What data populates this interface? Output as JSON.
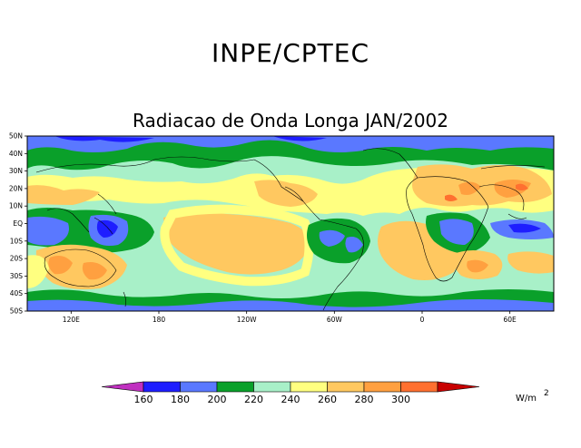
{
  "header": {
    "title": "INPE/CPTEC",
    "subtitle": "Radiacao de Onda Longa JAN/2002"
  },
  "map": {
    "lat_labels": [
      "50N",
      "40N",
      "30N",
      "20N",
      "10N",
      "EQ",
      "10S",
      "20S",
      "30S",
      "40S",
      "50S"
    ],
    "lon_labels": [
      "120E",
      "180",
      "120W",
      "60W",
      "0",
      "60E"
    ],
    "lon_label_positions_deg": [
      120,
      180,
      240,
      300,
      360,
      420
    ],
    "lat_range": [
      -50,
      50
    ],
    "lon_range": [
      90,
      450
    ]
  },
  "colorbar": {
    "levels": [
      "160",
      "180",
      "200",
      "220",
      "240",
      "260",
      "280",
      "300"
    ],
    "colors": [
      "#c030c0",
      "#1e1eff",
      "#5a78ff",
      "#0aa02a",
      "#a8f0c8",
      "#ffff80",
      "#ffc860",
      "#ffa040",
      "#ff7030",
      "#c80000"
    ],
    "units_main": "W/m",
    "units_exp": "2"
  }
}
